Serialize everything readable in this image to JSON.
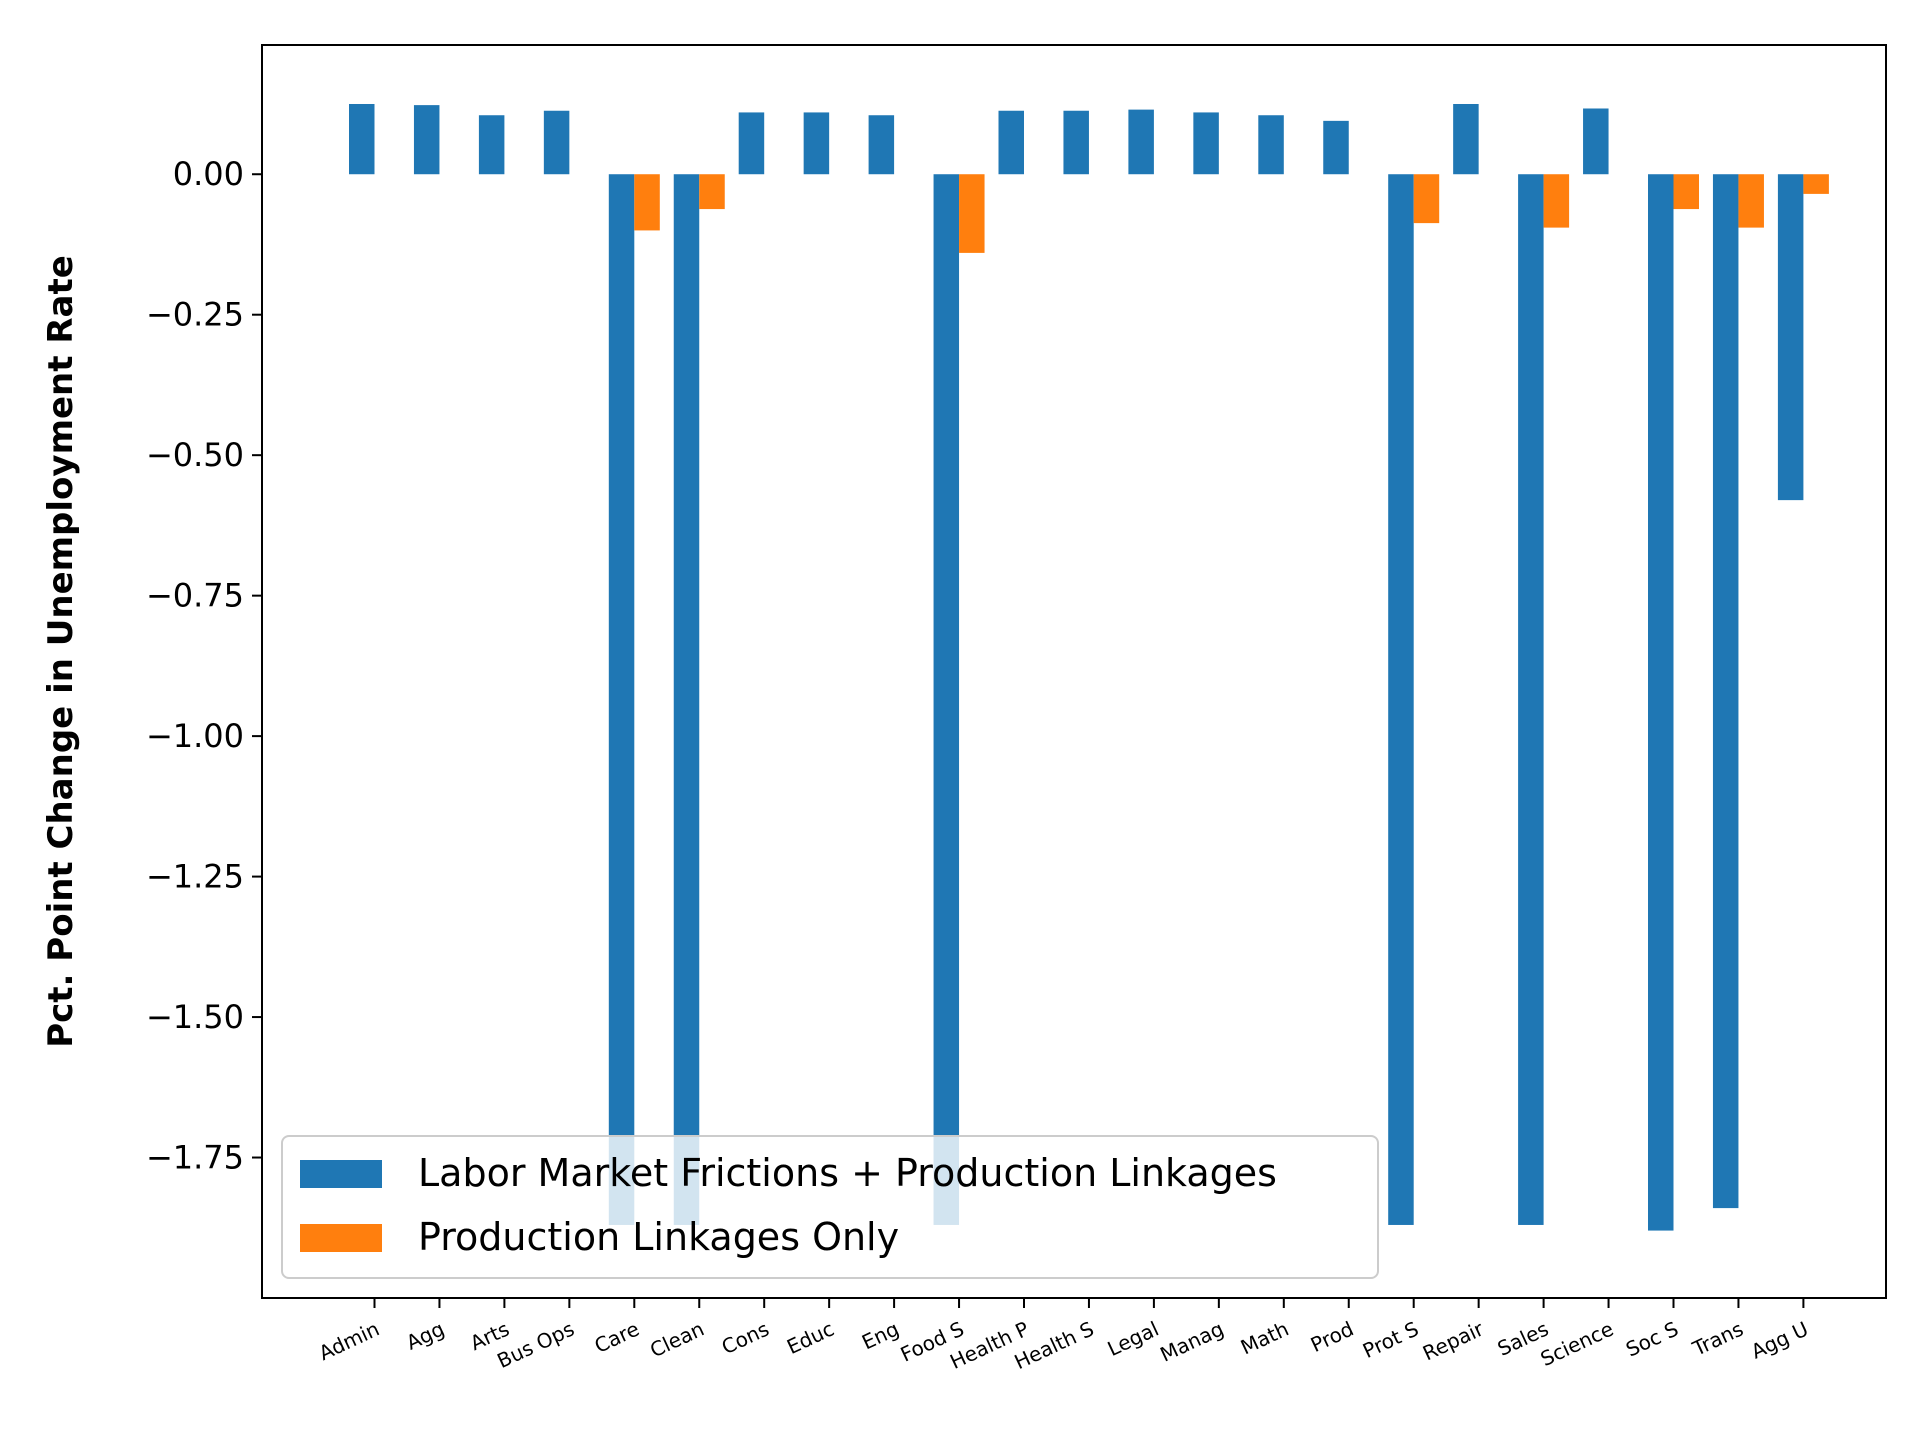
{
  "chart_data": {
    "type": "bar",
    "ylabel": "Pct. Point Change in Unemployment Rate",
    "xlabel": "",
    "ylim": [
      -2.0,
      0.23
    ],
    "yticks": [
      0.0,
      -0.25,
      -0.5,
      -0.75,
      -1.0,
      -1.25,
      -1.5,
      -1.75
    ],
    "ytick_labels": [
      "0.00",
      "−0.25",
      "−0.50",
      "−0.75",
      "−1.00",
      "−1.25",
      "−1.50",
      "−1.75"
    ],
    "categories": [
      "Admin",
      "Agg",
      "Arts",
      "Bus Ops",
      "Care",
      "Clean",
      "Cons",
      "Educ",
      "Eng",
      "Food S",
      "Health P",
      "Health S",
      "Legal",
      "Manag",
      "Math",
      "Prod",
      "Prot S",
      "Repair",
      "Sales",
      "Science",
      "Soc S",
      "Trans",
      "Agg U"
    ],
    "series": [
      {
        "name": "Labor Market Frictions + Production Linkages",
        "color": "#1f77b4",
        "values": [
          0.125,
          0.123,
          0.105,
          0.113,
          -1.87,
          -1.87,
          0.11,
          0.11,
          0.105,
          -1.87,
          0.113,
          0.113,
          0.115,
          0.11,
          0.105,
          0.095,
          -1.87,
          0.125,
          -1.87,
          0.117,
          -1.88,
          -1.84,
          -0.58
        ]
      },
      {
        "name": "Production Linkages Only",
        "color": "#ff7f0e",
        "values": [
          0,
          0,
          0,
          0,
          -0.1,
          -0.062,
          0,
          0,
          0,
          -0.14,
          0,
          0,
          0,
          0,
          0,
          0,
          -0.087,
          0,
          -0.095,
          0,
          -0.062,
          -0.095,
          -0.035
        ]
      }
    ],
    "grid": false,
    "legend_position": "lower-left"
  }
}
